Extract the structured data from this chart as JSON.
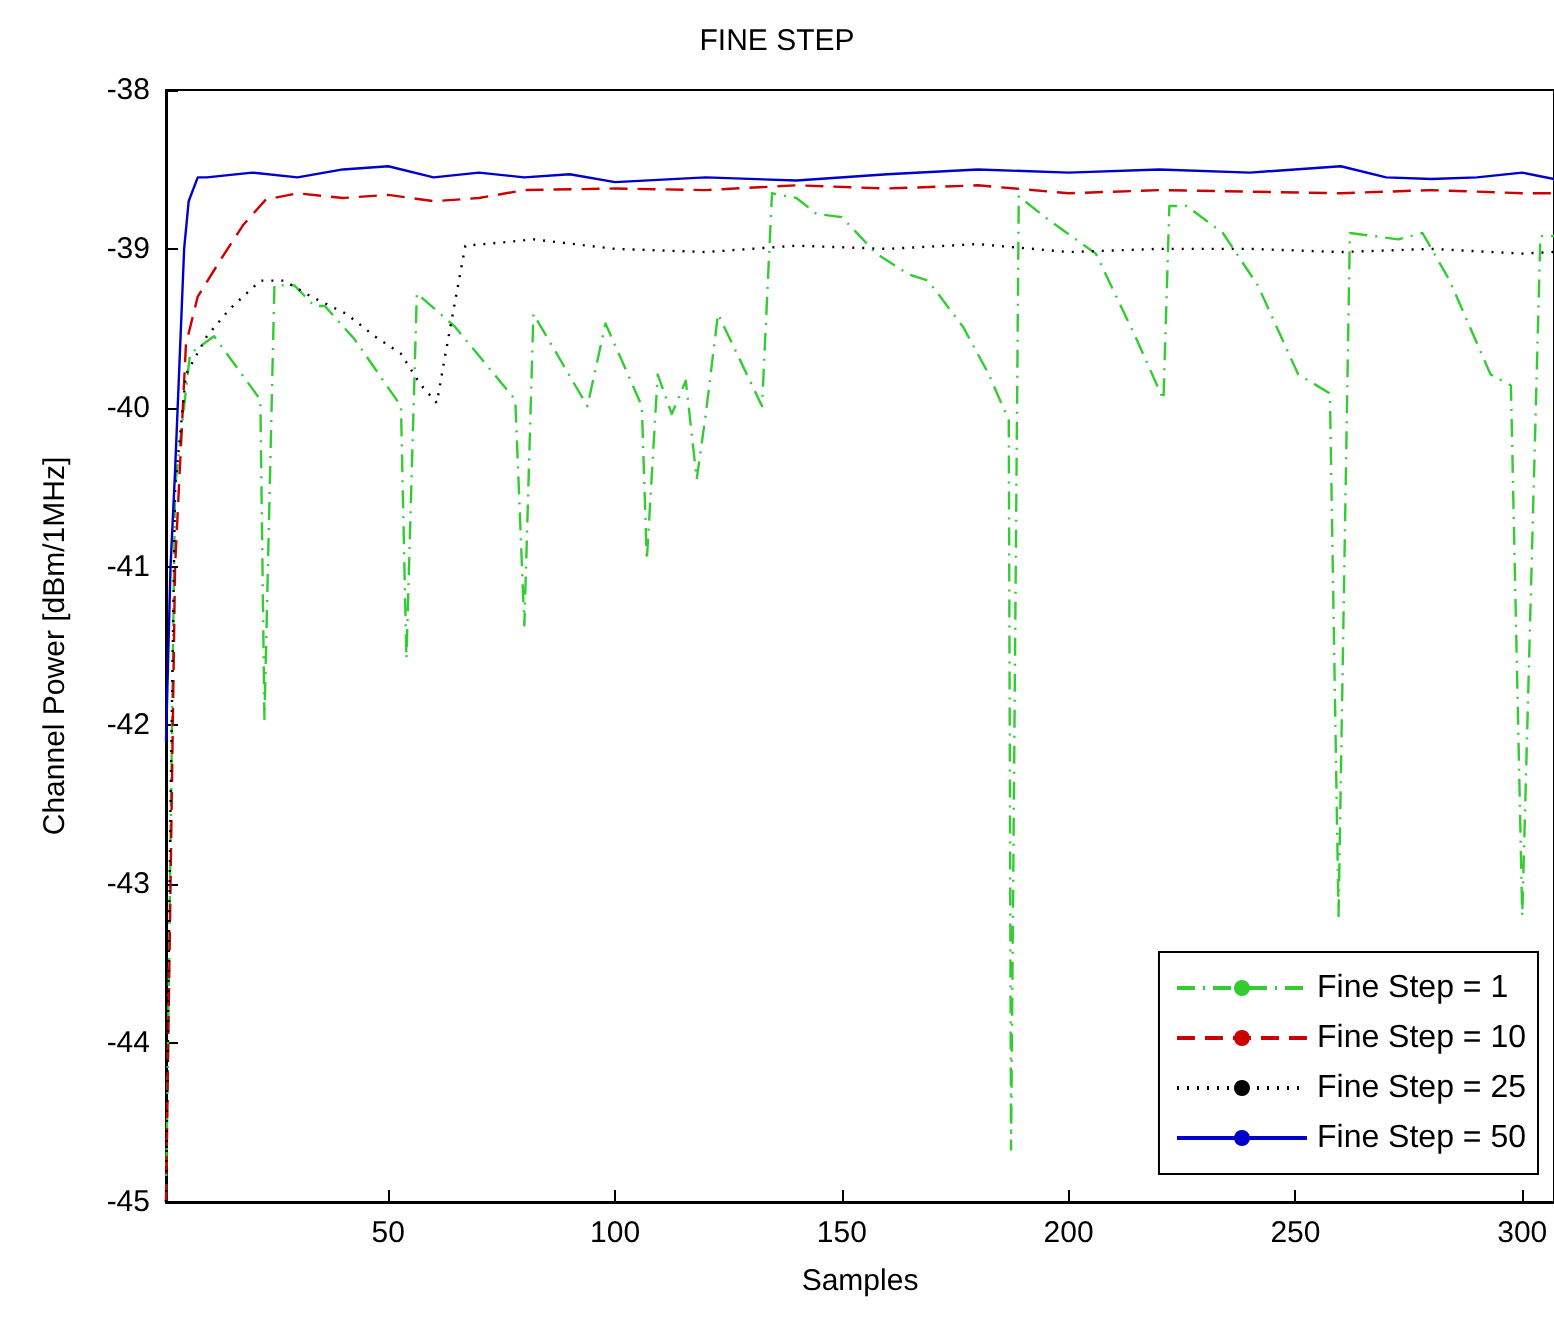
{
  "chart_data": {
    "type": "line",
    "title": "FINE STEP",
    "xlabel": "Samples",
    "ylabel": "Channel Power [dBm/1MHz]",
    "xlim": [
      1,
      307
    ],
    "xticks": [
      50,
      100,
      150,
      200,
      250,
      300
    ],
    "ylim": [
      -45,
      -38
    ],
    "yticks": [
      -45,
      -44,
      -43,
      -42,
      -41,
      -40,
      -39,
      -38
    ],
    "grid": false,
    "legend": "bottom right",
    "marker": "none",
    "series": [
      {
        "name": "Fine Step = 1",
        "color": "#33cc33",
        "line_style": "dashdot",
        "x": [
          1,
          3,
          6.3,
          11.6,
          21.8,
          22.7,
          24.9,
          29.3,
          33.7,
          36,
          42.6,
          52.8,
          54,
          56.3,
          64.7,
          78,
          80,
          82,
          93.9,
          97.9,
          105.9,
          107,
          109.4,
          112.5,
          115.6,
          118,
          120,
          122.7,
          132.4,
          134.6,
          140,
          144.4,
          150,
          157.6,
          164.7,
          169,
          176.7,
          182.4,
          186.8,
          187.3,
          189,
          195.7,
          206,
          215,
          220.9,
          222.2,
          226,
          234,
          241.7,
          250.6,
          257.6,
          259.5,
          262,
          272.7,
          278,
          284,
          293,
          297.5,
          300,
          304,
          307
        ],
        "values": [
          -45,
          -40.5,
          -39.66,
          -39.55,
          -39.95,
          -41.96,
          -39.23,
          -39.23,
          -39.36,
          -39.36,
          -39.57,
          -39.99,
          -41.58,
          -39.28,
          -39.49,
          -39.95,
          -41.37,
          -39.41,
          -39.99,
          -39.47,
          -39.99,
          -40.96,
          -39.79,
          -40.04,
          -39.83,
          -40.45,
          -40.04,
          -39.41,
          -39.99,
          -38.65,
          -38.68,
          -38.78,
          -38.8,
          -39.03,
          -39.16,
          -39.2,
          -39.49,
          -39.79,
          -40.08,
          -44.67,
          -38.67,
          -38.82,
          -39.03,
          -39.57,
          -39.95,
          -38.73,
          -38.73,
          -38.9,
          -39.23,
          -39.79,
          -39.91,
          -43.2,
          -38.9,
          -38.94,
          -38.9,
          -39.2,
          -39.79,
          -39.86,
          -43.2,
          -38.92,
          -38.92
        ]
      },
      {
        "name": "Fine Step = 10",
        "color": "#cc0000",
        "line_style": "dashed",
        "x": [
          1,
          2,
          3,
          5.4,
          8,
          13,
          18,
          23,
          30,
          40,
          50,
          60,
          70,
          80,
          100,
          120,
          140,
          160,
          180,
          200,
          220,
          240,
          260,
          280,
          300,
          307
        ],
        "values": [
          -45,
          -43,
          -41,
          -39.6,
          -39.3,
          -39.07,
          -38.85,
          -38.69,
          -38.65,
          -38.68,
          -38.66,
          -38.7,
          -38.68,
          -38.63,
          -38.62,
          -38.63,
          -38.6,
          -38.62,
          -38.6,
          -38.65,
          -38.63,
          -38.64,
          -38.65,
          -38.63,
          -38.65,
          -38.65
        ]
      },
      {
        "name": "Fine Step = 25",
        "color": "#000000",
        "line_style": "dotted",
        "x": [
          1,
          2,
          3,
          5.4,
          10,
          15,
          21.8,
          27,
          33,
          40.8,
          47,
          52.8,
          57,
          60.7,
          63,
          67,
          75,
          82,
          100,
          120,
          140,
          160,
          180,
          200,
          220,
          240,
          260,
          280,
          300,
          307
        ],
        "values": [
          -45,
          -42.5,
          -40.5,
          -39.79,
          -39.55,
          -39.38,
          -39.2,
          -39.2,
          -39.3,
          -39.41,
          -39.55,
          -39.66,
          -39.85,
          -39.97,
          -39.6,
          -38.98,
          -38.96,
          -38.94,
          -39.0,
          -39.02,
          -38.98,
          -39.0,
          -38.97,
          -39.02,
          -39.0,
          -39.0,
          -39.02,
          -39.0,
          -39.03,
          -39.02
        ]
      },
      {
        "name": "Fine Step = 50",
        "color": "#0000cc",
        "line_style": "solid",
        "x": [
          1,
          2,
          3,
          4,
          5,
          6,
          8,
          10,
          20,
          30,
          40,
          50,
          60,
          70,
          80,
          90,
          100,
          120,
          140,
          160,
          180,
          200,
          220,
          240,
          260,
          270,
          280,
          290,
          300,
          307
        ],
        "values": [
          -42.1,
          -41,
          -40.4,
          -39.7,
          -39,
          -38.7,
          -38.55,
          -38.55,
          -38.52,
          -38.55,
          -38.5,
          -38.48,
          -38.55,
          -38.52,
          -38.55,
          -38.53,
          -38.58,
          -38.55,
          -38.57,
          -38.53,
          -38.5,
          -38.52,
          -38.5,
          -38.52,
          -38.48,
          -38.55,
          -38.56,
          -38.55,
          -38.52,
          -38.56
        ]
      }
    ]
  }
}
